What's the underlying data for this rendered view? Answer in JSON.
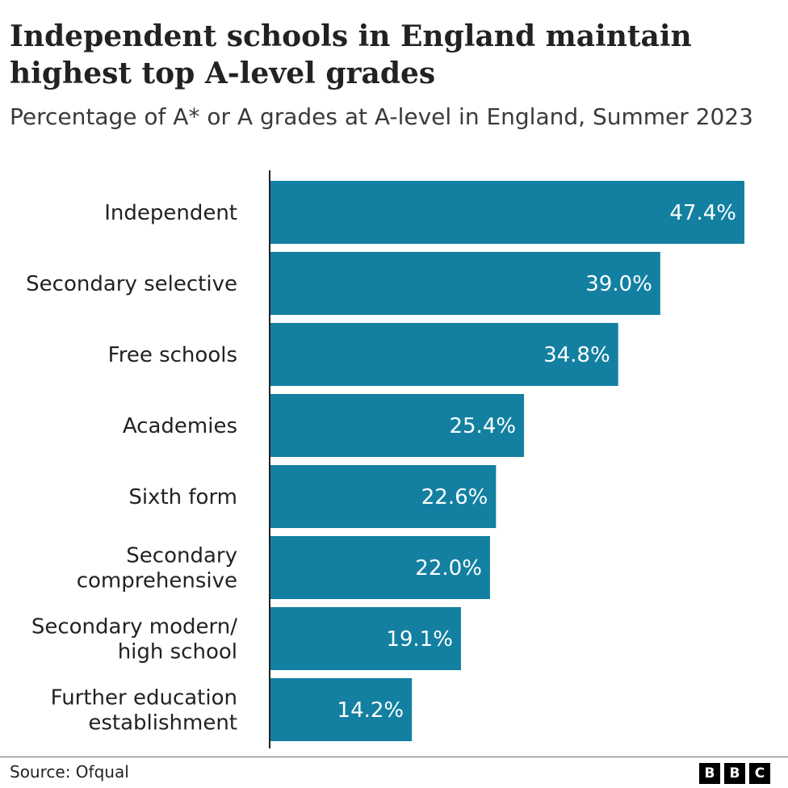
{
  "title": "Independent schools in England maintain highest top A-level grades",
  "subtitle": "Percentage of A* or A grades at A-level in England, Summer 2023",
  "source": "Source: Ofqual",
  "logo": [
    "B",
    "B",
    "C"
  ],
  "colors": {
    "bar": "#1380A1",
    "axis": "#222222"
  },
  "chart_data": {
    "type": "bar",
    "orientation": "horizontal",
    "categories": [
      [
        "Independent"
      ],
      [
        "Secondary selective"
      ],
      [
        "Free schools"
      ],
      [
        "Academies"
      ],
      [
        "Sixth form"
      ],
      [
        "Secondary",
        "comprehensive"
      ],
      [
        "Secondary modern/",
        "high school"
      ],
      [
        "Further education",
        "establishment"
      ]
    ],
    "values": [
      47.4,
      39.0,
      34.8,
      25.4,
      22.6,
      22.0,
      19.1,
      14.2
    ],
    "value_labels": [
      "47.4%",
      "39.0%",
      "34.8%",
      "25.4%",
      "22.6%",
      "22.0%",
      "19.1%",
      "14.2%"
    ],
    "xlim": [
      0,
      47.4
    ],
    "title": "Independent schools in England maintain highest top A-level grades",
    "xlabel": "",
    "ylabel": "",
    "grid": false,
    "legend": "none"
  }
}
